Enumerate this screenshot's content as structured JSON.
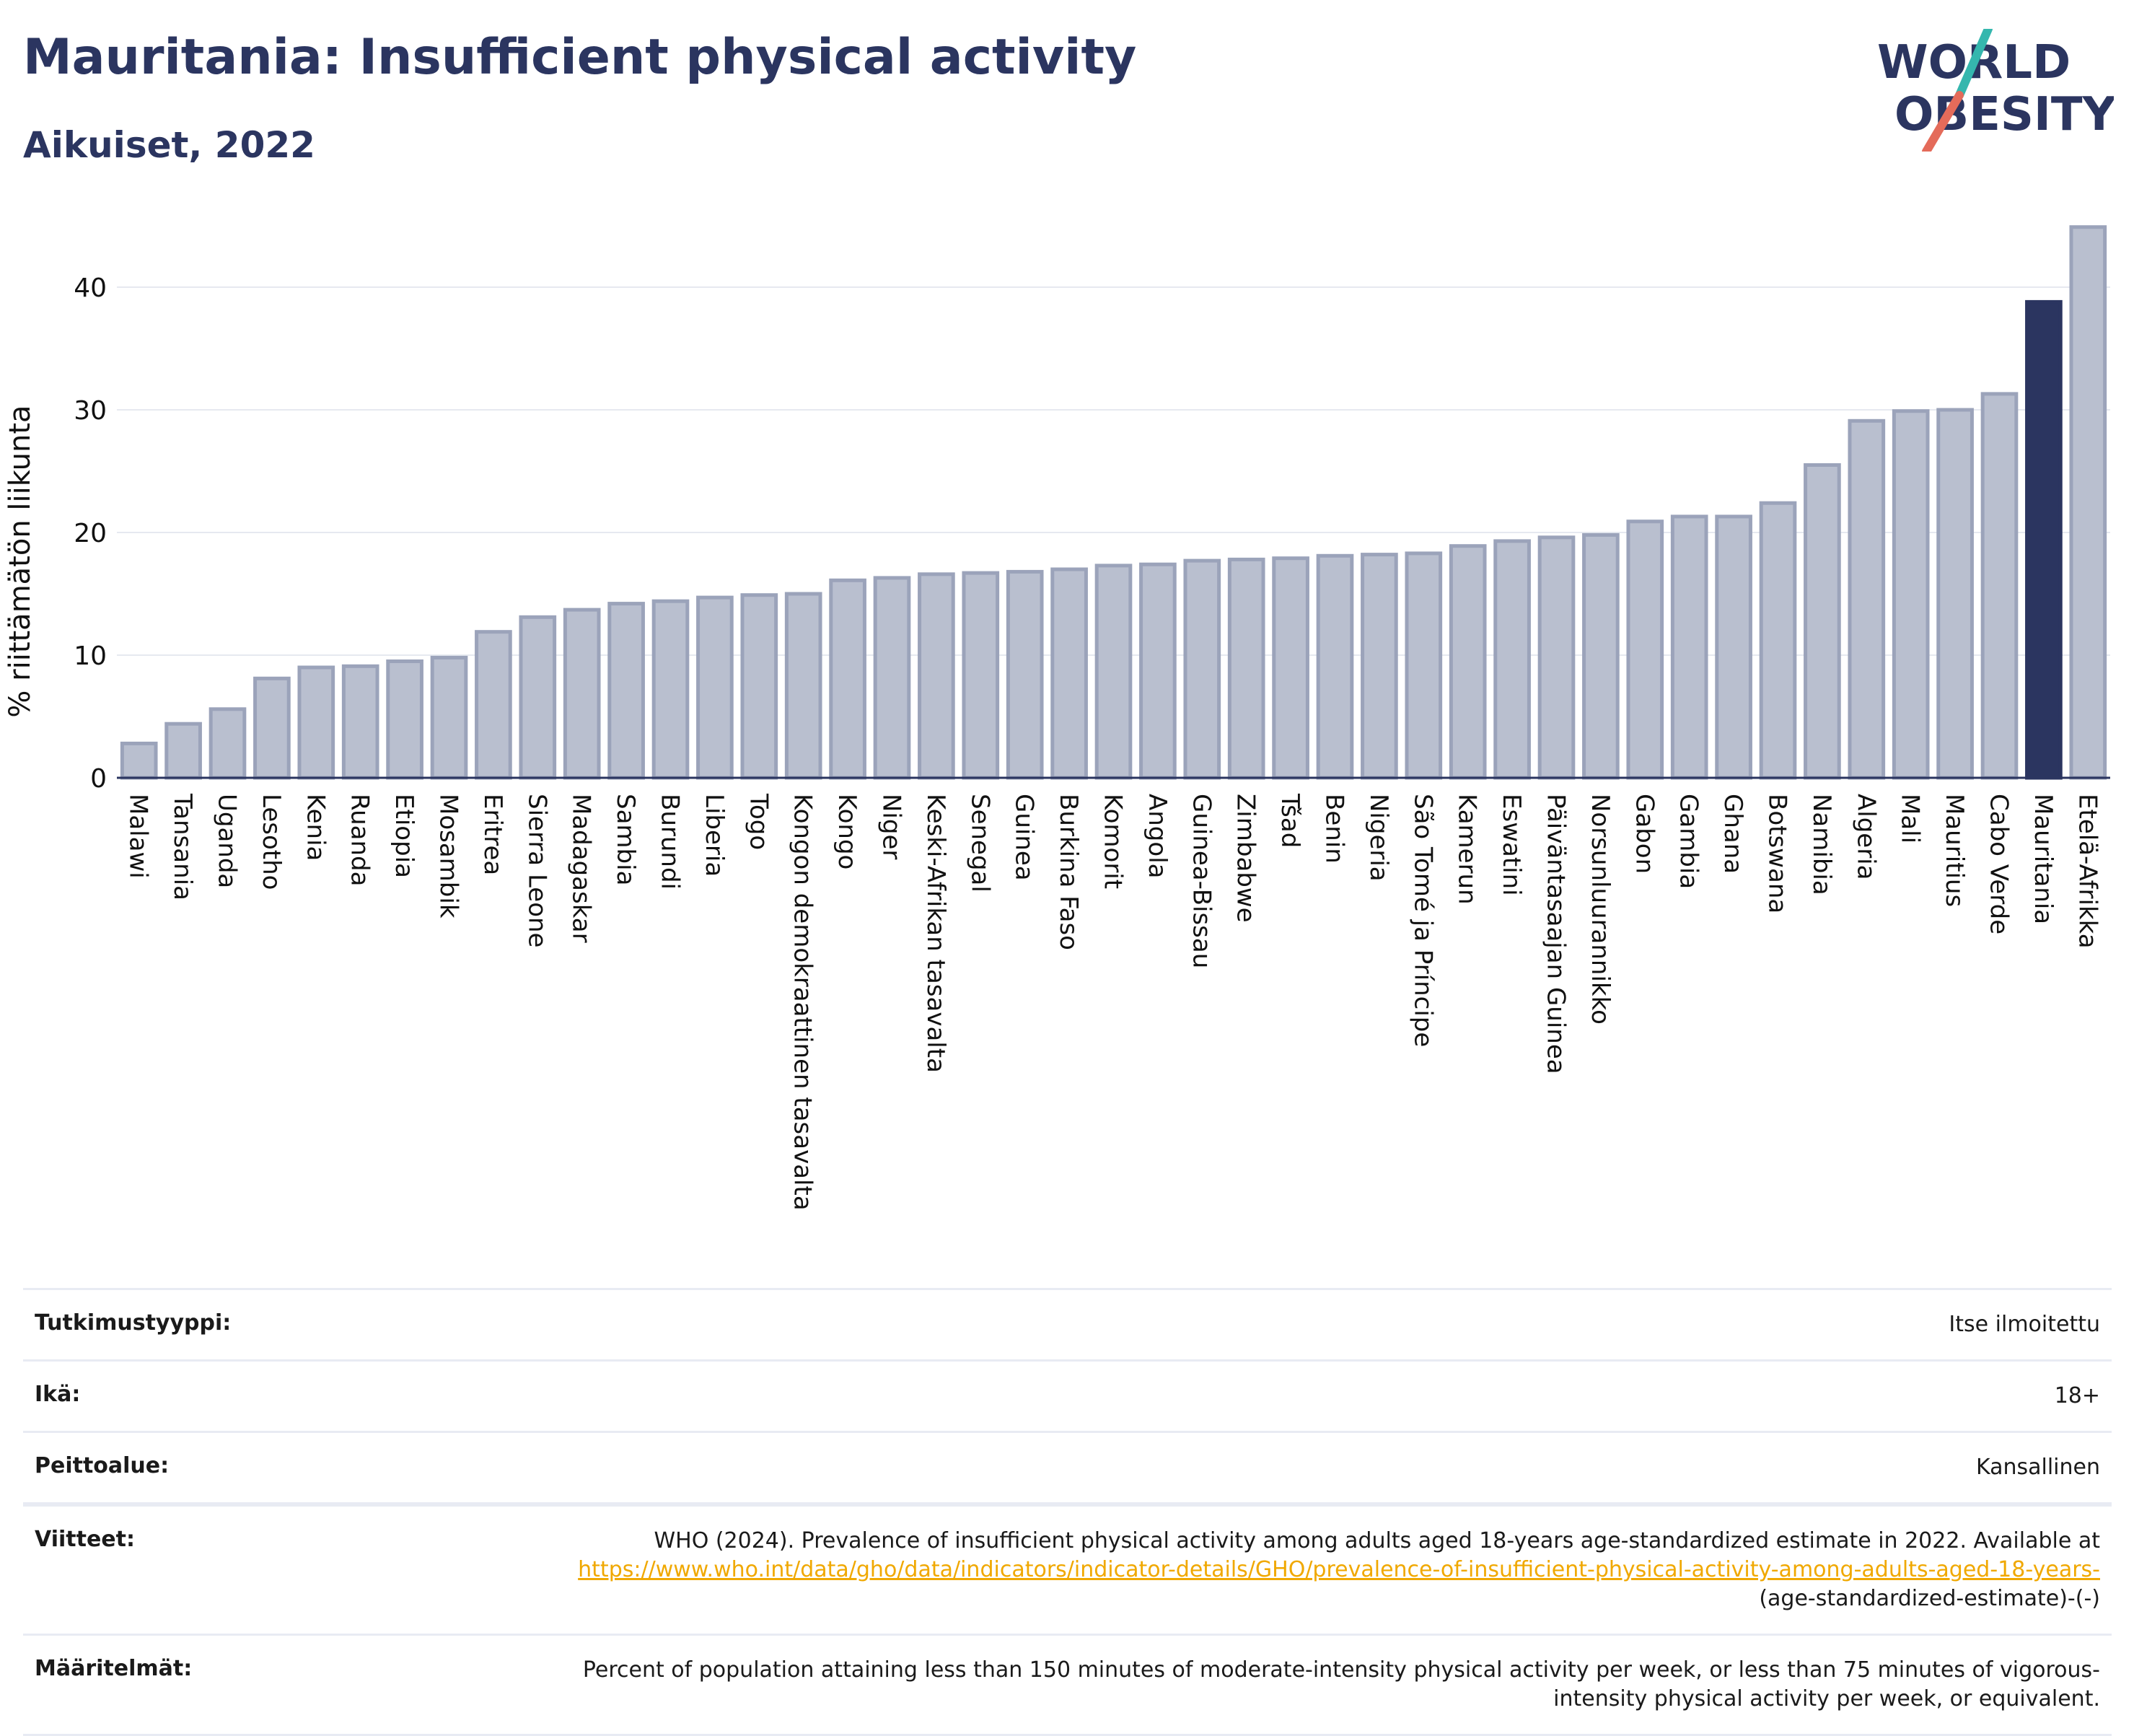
{
  "header": {
    "title": "Mauritania: Insufficient physical activity",
    "subtitle": "Aikuiset, 2022",
    "logo_line1": "WORLD",
    "logo_line2": "OBESITY"
  },
  "colors": {
    "title": "#2b3560",
    "bar": "#b9bfcf",
    "bar_stroke": "#9ba3ba",
    "highlight": "#2b3560",
    "logo_teal": "#35b7ae",
    "logo_coral": "#e46b5a",
    "link": "#f0a800"
  },
  "chart_data": {
    "type": "bar",
    "ylabel": "% riittämätön liikunta",
    "xlabel": "",
    "ylim": [
      0,
      46
    ],
    "yticks": [
      0,
      10,
      20,
      30,
      40
    ],
    "grid": true,
    "highlight": "Mauritania",
    "categories": [
      "Malawi",
      "Tansania",
      "Uganda",
      "Lesotho",
      "Kenia",
      "Ruanda",
      "Etiopia",
      "Mosambik",
      "Eritrea",
      "Sierra Leone",
      "Madagaskar",
      "Sambia",
      "Burundi",
      "Liberia",
      "Togo",
      "Kongon demokraattinen tasavalta",
      "Kongo",
      "Niger",
      "Keski-Afrikan tasavalta",
      "Senegal",
      "Guinea",
      "Burkina Faso",
      "Komorit",
      "Angola",
      "Guinea-Bissau",
      "Zimbabwe",
      "Tšad",
      "Benin",
      "Nigeria",
      "São Tomé ja Príncipe",
      "Kamerun",
      "Eswatini",
      "Päiväntasaajan Guinea",
      "Norsunluurannikko",
      "Gabon",
      "Gambia",
      "Ghana",
      "Botswana",
      "Namibia",
      "Algeria",
      "Mali",
      "Mauritius",
      "Cabo Verde",
      "Mauritania",
      "Etelä-Afrikka"
    ],
    "values": [
      2.8,
      4.4,
      5.6,
      8.1,
      9.0,
      9.1,
      9.5,
      9.8,
      11.9,
      13.1,
      13.7,
      14.2,
      14.4,
      14.7,
      14.9,
      15.0,
      16.1,
      16.3,
      16.6,
      16.7,
      16.8,
      17.0,
      17.3,
      17.4,
      17.7,
      17.8,
      17.9,
      18.1,
      18.2,
      18.3,
      18.9,
      19.3,
      19.6,
      19.8,
      20.9,
      21.3,
      21.3,
      22.4,
      25.5,
      29.1,
      29.9,
      30.0,
      31.3,
      38.8,
      44.9
    ]
  },
  "info": {
    "rows": [
      {
        "key": "Tutkimustyyppi:",
        "value": "Itse ilmoitettu"
      },
      {
        "key": "Ikä:",
        "value": "18+"
      },
      {
        "key": "Peittoalue:",
        "value": "Kansallinen"
      }
    ],
    "ref_key": "Viitteet:",
    "ref_text": "WHO (2024). Prevalence of insufficient physical activity among adults aged 18-years age-standardized estimate in 2022. Available at",
    "ref_link": "https://www.who.int/data/gho/data/indicators/indicator-details/GHO/prevalence-of-insufficient-physical-activity-among-adults-aged-18-years-",
    "ref_tail": "(age-standardized-estimate)-(-)",
    "def_key": "Määritelmät:",
    "def_text": "Percent of population attaining less than 150 minutes of moderate-intensity physical activity per week, or less than 75 minutes of vigorous-intensity physical activity per week, or equivalent."
  }
}
